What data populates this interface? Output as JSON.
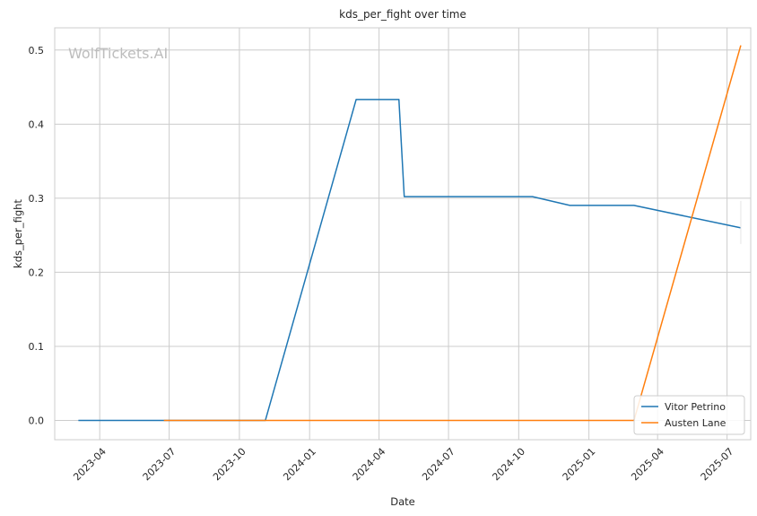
{
  "chart_data": {
    "type": "line",
    "title": "kds_per_fight over time",
    "xlabel": "Date",
    "ylabel": "kds_per_fight",
    "watermark": "WolfTickets.AI",
    "x_range": [
      "2023-02-01",
      "2025-08-01"
    ],
    "ylim": [
      -0.026,
      0.53
    ],
    "x_ticks": [
      "2023-04",
      "2023-07",
      "2023-10",
      "2024-01",
      "2024-04",
      "2024-07",
      "2024-10",
      "2025-01",
      "2025-04",
      "2025-07"
    ],
    "y_ticks": [
      "0.0",
      "0.1",
      "0.2",
      "0.3",
      "0.4",
      "0.5"
    ],
    "grid": true,
    "legend_position": "bottom-right",
    "series": [
      {
        "name": "Vitor Petrino",
        "color": "#1f77b4",
        "points": [
          {
            "x": "2023-03-04",
            "y": 0.0
          },
          {
            "x": "2023-11-04",
            "y": 0.0
          },
          {
            "x": "2024-03-02",
            "y": 0.4333
          },
          {
            "x": "2024-04-27",
            "y": 0.4333
          },
          {
            "x": "2024-05-04",
            "y": 0.3021
          },
          {
            "x": "2024-10-19",
            "y": 0.3021
          },
          {
            "x": "2024-12-07",
            "y": 0.2903
          },
          {
            "x": "2025-03-01",
            "y": 0.2903
          },
          {
            "x": "2025-07-19",
            "y": 0.26
          }
        ]
      },
      {
        "name": "Austen Lane",
        "color": "#ff7f0e",
        "points": [
          {
            "x": "2023-06-24",
            "y": 0.0
          },
          {
            "x": "2025-03-01",
            "y": 0.0
          },
          {
            "x": "2025-07-19",
            "y": 0.5063
          }
        ]
      }
    ]
  }
}
